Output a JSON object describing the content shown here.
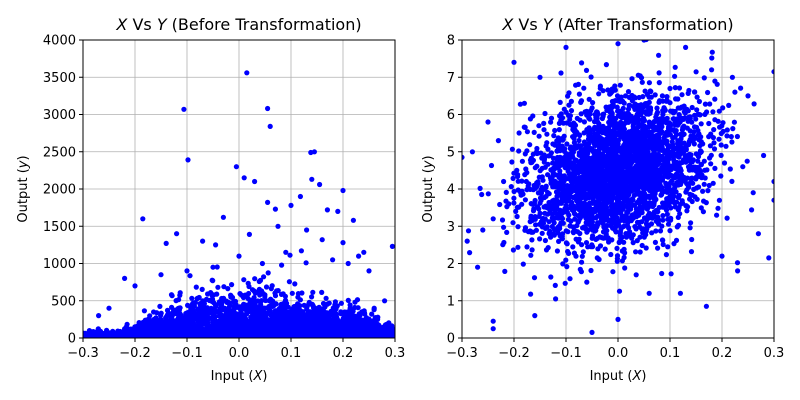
{
  "figure": {
    "background": "#ffffff",
    "point_color": "#0000ff",
    "grid": true
  },
  "chart_data": [
    {
      "type": "scatter",
      "title": "X Vs Y (Before Transformation)",
      "title_parts": {
        "var1": "X",
        "vs": " Vs ",
        "var2": "Y",
        "rest": " (Before Transformation)"
      },
      "xlabel": "Input (X)",
      "xlabel_parts": {
        "text": "Input (",
        "var": "X",
        "close": ")"
      },
      "ylabel": "Output (y)",
      "ylabel_parts": {
        "text": "Output (",
        "var": "y",
        "close": ")"
      },
      "xlim": [
        -0.3,
        0.3
      ],
      "ylim": [
        0,
        4000
      ],
      "xticks": [
        -0.3,
        -0.2,
        -0.1,
        0.0,
        0.1,
        0.2,
        0.3
      ],
      "xtick_labels": [
        "−0.3",
        "−0.2",
        "−0.1",
        "0.0",
        "0.1",
        "0.2",
        "0.3"
      ],
      "yticks": [
        0,
        500,
        1000,
        1500,
        2000,
        2500,
        3000,
        3500,
        4000
      ],
      "ytick_labels": [
        "0",
        "500",
        "1000",
        "1500",
        "2000",
        "2500",
        "3000",
        "3500",
        "4000"
      ],
      "series": [
        {
          "color": "#0000ff",
          "points": [
            [
              0.015,
              3560
            ],
            [
              -0.106,
              3070
            ],
            [
              0.055,
              3080
            ],
            [
              0.06,
              2840
            ],
            [
              -0.098,
              2390
            ],
            [
              0.138,
              2490
            ],
            [
              0.145,
              2500
            ],
            [
              -0.005,
              2300
            ],
            [
              0.01,
              2150
            ],
            [
              0.03,
              2100
            ],
            [
              0.14,
              2130
            ],
            [
              0.155,
              2060
            ],
            [
              0.118,
              1900
            ],
            [
              0.2,
              1980
            ],
            [
              -0.185,
              1600
            ],
            [
              0.055,
              1820
            ],
            [
              0.07,
              1730
            ],
            [
              0.1,
              1780
            ],
            [
              0.17,
              1720
            ],
            [
              0.19,
              1700
            ],
            [
              0.22,
              1580
            ],
            [
              0.075,
              1500
            ],
            [
              -0.03,
              1620
            ],
            [
              -0.12,
              1400
            ],
            [
              -0.045,
              1250
            ],
            [
              0.13,
              1450
            ],
            [
              0.16,
              1320
            ],
            [
              0.295,
              1230
            ],
            [
              0.24,
              1150
            ],
            [
              0.25,
              900
            ],
            [
              -0.07,
              1300
            ],
            [
              -0.14,
              1270
            ],
            [
              0.2,
              1280
            ],
            [
              0.02,
              1390
            ],
            [
              0.0,
              1100
            ],
            [
              -0.1,
              900
            ],
            [
              -0.15,
              850
            ],
            [
              0.09,
              1150
            ],
            [
              0.21,
              1000
            ],
            [
              0.23,
              1100
            ],
            [
              -0.2,
              700
            ],
            [
              -0.22,
              800
            ],
            [
              -0.05,
              950
            ],
            [
              0.045,
              1000
            ],
            [
              -0.25,
              400
            ],
            [
              -0.27,
              300
            ],
            [
              0.28,
              500
            ],
            [
              0.26,
              400
            ],
            [
              0.18,
              1050
            ],
            [
              0.12,
              1170
            ]
          ]
        }
      ]
    },
    {
      "type": "scatter",
      "title": "X Vs Y (After Transformation)",
      "title_parts": {
        "var1": "X",
        "vs": " Vs ",
        "var2": "Y",
        "rest": " (After Transformation)"
      },
      "xlabel": "Input (X)",
      "xlabel_parts": {
        "text": "Input (",
        "var": "X",
        "close": ")"
      },
      "ylabel": "Output (y)",
      "ylabel_parts": {
        "text": "Output (",
        "var": "y",
        "close": ")"
      },
      "xlim": [
        -0.3,
        0.3
      ],
      "ylim": [
        0,
        8
      ],
      "xticks": [
        -0.3,
        -0.2,
        -0.1,
        0.0,
        0.1,
        0.2,
        0.3
      ],
      "xtick_labels": [
        "−0.3",
        "−0.2",
        "−0.1",
        "0.0",
        "0.1",
        "0.2",
        "0.3"
      ],
      "yticks": [
        0,
        1,
        2,
        3,
        4,
        5,
        6,
        7,
        8
      ],
      "ytick_labels": [
        "0",
        "1",
        "2",
        "3",
        "4",
        "5",
        "6",
        "7",
        "8"
      ],
      "series": [
        {
          "color": "#0000ff",
          "points": [
            [
              -0.24,
              0.45
            ],
            [
              -0.24,
              0.25
            ],
            [
              -0.16,
              0.6
            ],
            [
              -0.05,
              0.15
            ],
            [
              0.0,
              0.5
            ],
            [
              -0.12,
              1.05
            ],
            [
              0.17,
              0.85
            ],
            [
              0.12,
              1.2
            ],
            [
              -0.3,
              4.85
            ],
            [
              -0.28,
              5.0
            ],
            [
              -0.25,
              5.8
            ],
            [
              -0.23,
              5.3
            ],
            [
              0.3,
              7.15
            ],
            [
              0.3,
              4.2
            ],
            [
              0.3,
              3.7
            ],
            [
              0.29,
              2.15
            ],
            [
              0.27,
              2.8
            ],
            [
              0.25,
              6.5
            ],
            [
              0.28,
              4.9
            ],
            [
              -0.29,
              2.6
            ],
            [
              -0.27,
              1.9
            ],
            [
              -0.26,
              2.9
            ],
            [
              -0.2,
              7.4
            ],
            [
              -0.15,
              7.0
            ],
            [
              0.0,
              7.9
            ],
            [
              0.05,
              8.0
            ],
            [
              0.13,
              7.8
            ],
            [
              0.18,
              7.2
            ],
            [
              -0.1,
              7.8
            ],
            [
              0.22,
              7.0
            ],
            [
              -0.22,
              4.2
            ],
            [
              -0.18,
              6.3
            ],
            [
              0.2,
              2.2
            ],
            [
              0.23,
              1.8
            ],
            [
              -0.06,
              1.5
            ],
            [
              0.06,
              1.2
            ],
            [
              -0.21,
              3.6
            ],
            [
              0.24,
              4.6
            ],
            [
              0.26,
              3.9
            ],
            [
              -0.24,
              3.2
            ]
          ]
        }
      ]
    }
  ]
}
